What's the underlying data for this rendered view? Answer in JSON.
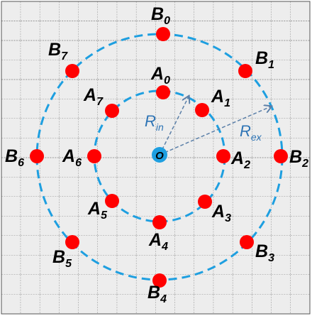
{
  "origin": {
    "letter": "O"
  },
  "inner_points": [
    {
      "letter": "A",
      "index": "0"
    },
    {
      "letter": "A",
      "index": "1"
    },
    {
      "letter": "A",
      "index": "2"
    },
    {
      "letter": "A",
      "index": "3"
    },
    {
      "letter": "A",
      "index": "4"
    },
    {
      "letter": "A",
      "index": "5"
    },
    {
      "letter": "A",
      "index": "6"
    },
    {
      "letter": "A",
      "index": "7"
    }
  ],
  "outer_points": [
    {
      "letter": "B",
      "index": "0"
    },
    {
      "letter": "B",
      "index": "1"
    },
    {
      "letter": "B",
      "index": "2"
    },
    {
      "letter": "B",
      "index": "3"
    },
    {
      "letter": "B",
      "index": "4"
    },
    {
      "letter": "B",
      "index": "5"
    },
    {
      "letter": "B",
      "index": "6"
    },
    {
      "letter": "B",
      "index": "7"
    }
  ],
  "radii": [
    {
      "letter": "R",
      "index": "in"
    },
    {
      "letter": "R",
      "index": "ex"
    }
  ]
}
